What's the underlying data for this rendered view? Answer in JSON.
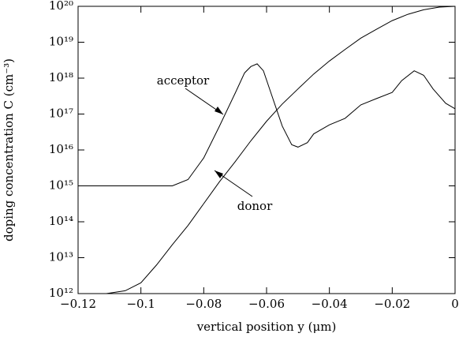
{
  "chart_data": {
    "type": "line",
    "xlabel": "vertical position y (μm)",
    "ylabel": "doping concentration C (cm⁻³)",
    "log_y": true,
    "xlim": [
      -0.12,
      0
    ],
    "ylim": [
      1000000000000.0,
      1e+20
    ],
    "xticks": [
      {
        "value": -0.12,
        "label": "−0.12"
      },
      {
        "value": -0.1,
        "label": "−0.1"
      },
      {
        "value": -0.08,
        "label": "−0.08"
      },
      {
        "value": -0.06,
        "label": "−0.06"
      },
      {
        "value": -0.04,
        "label": "−0.04"
      },
      {
        "value": -0.02,
        "label": "−0.02"
      },
      0
    ],
    "yticks": [
      {
        "value": 1000000000000.0,
        "label": "10¹²"
      },
      {
        "value": 10000000000000.0,
        "label": "10¹³"
      },
      {
        "value": 100000000000000.0,
        "label": "10¹⁴"
      },
      {
        "value": 1000000000000000.0,
        "label": "10¹⁵"
      },
      {
        "value": 1e+16,
        "label": "10¹⁶"
      },
      {
        "value": 1e+17,
        "label": "10¹⁷"
      },
      {
        "value": 1e+18,
        "label": "10¹⁸"
      },
      {
        "value": 1e+19,
        "label": "10¹⁹"
      },
      {
        "value": 1e+20,
        "label": "10²⁰"
      }
    ],
    "series": [
      {
        "name": "acceptor",
        "color": "#000000",
        "x": [
          -0.12,
          -0.09,
          -0.085,
          -0.08,
          -0.075,
          -0.07,
          -0.067,
          -0.065,
          -0.063,
          -0.061,
          -0.058,
          -0.055,
          -0.052,
          -0.05,
          -0.047,
          -0.045,
          -0.04,
          -0.035,
          -0.03,
          -0.025,
          -0.02,
          -0.017,
          -0.013,
          -0.01,
          -0.007,
          -0.003,
          0
        ],
        "values": [
          1000000000000000.0,
          1000000000000000.0,
          1500000000000000.0,
          6000000000000000.0,
          4.6e+16,
          3.8e+17,
          1.4e+18,
          2.1e+18,
          2.5e+18,
          1.6e+18,
          2.7e+17,
          4.6e+16,
          1.4e+16,
          1.2e+16,
          1.6e+16,
          2.8e+16,
          5e+16,
          7.6e+16,
          1.8e+17,
          2.7e+17,
          4e+17,
          8.5e+17,
          1.6e+18,
          1.2e+18,
          5e+17,
          2e+17,
          1.4e+17
        ]
      },
      {
        "name": "donor",
        "color": "#000000",
        "x": [
          -0.111,
          -0.105,
          -0.1,
          -0.095,
          -0.09,
          -0.085,
          -0.08,
          -0.075,
          -0.07,
          -0.065,
          -0.06,
          -0.055,
          -0.05,
          -0.045,
          -0.04,
          -0.035,
          -0.03,
          -0.025,
          -0.02,
          -0.015,
          -0.01,
          -0.005,
          0
        ],
        "values": [
          1000000000000.0,
          1200000000000.0,
          2000000000000.0,
          6300000000000.0,
          23000000000000.0,
          79000000000000.0,
          320000000000000.0,
          1300000000000000.0,
          4700000000000000.0,
          1.8e+16,
          6.3e+16,
          1.9e+17,
          5e+17,
          1.3e+18,
          3e+18,
          6.3e+18,
          1.3e+19,
          2.3e+19,
          4e+19,
          6e+19,
          8e+19,
          9.5e+19,
          1e+20
        ]
      }
    ]
  }
}
